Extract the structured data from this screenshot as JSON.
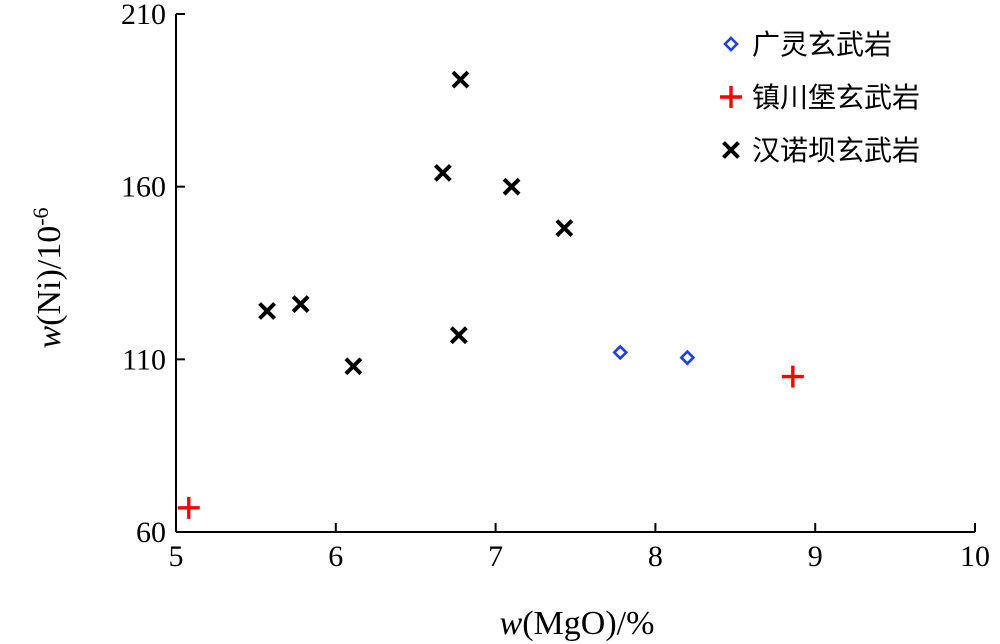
{
  "chart_data": {
    "type": "scatter",
    "title": "",
    "xlabel": {
      "prefix": "w",
      "text": "(MgO)/%"
    },
    "ylabel": {
      "prefix": "w",
      "text": "(Ni)/10",
      "sup": "-6"
    },
    "xlim": [
      5,
      10
    ],
    "ylim": [
      60,
      210
    ],
    "xticks": [
      "5",
      "6",
      "7",
      "8",
      "9",
      "10"
    ],
    "yticks": [
      "60",
      "110",
      "160",
      "210"
    ],
    "grid": false,
    "legend_position": "top-right",
    "series": [
      {
        "name": "广灵玄武岩",
        "marker": "diamond",
        "color": "#1f3fe0",
        "points": [
          [
            7.78,
            112
          ],
          [
            8.2,
            110.5
          ]
        ]
      },
      {
        "name": "镇川堡玄武岩",
        "marker": "plus",
        "color": "#ff0000",
        "points": [
          [
            5.08,
            67
          ],
          [
            8.86,
            105
          ]
        ]
      },
      {
        "name": "汉诺坝玄武岩",
        "marker": "x",
        "color": "#000000",
        "points": [
          [
            6.78,
            191
          ],
          [
            6.67,
            164
          ],
          [
            7.1,
            160
          ],
          [
            7.43,
            148
          ],
          [
            5.57,
            124
          ],
          [
            5.78,
            126
          ],
          [
            6.77,
            117
          ],
          [
            6.11,
            108
          ]
        ]
      }
    ]
  }
}
